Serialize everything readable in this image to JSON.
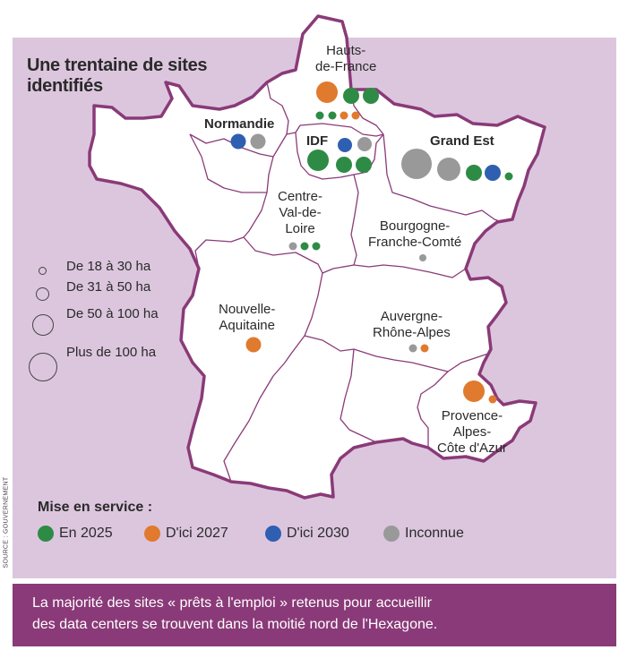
{
  "title_lines": [
    "Une trentaine de sites",
    "identifiés"
  ],
  "regions": {
    "hdf": [
      "Hauts-",
      "de-France"
    ],
    "normandie": "Normandie",
    "idf": "IDF",
    "grand_est": "Grand Est",
    "cvl": [
      "Centre-",
      "Val-de-",
      "Loire"
    ],
    "bfc": [
      "Bourgogne-",
      "Franche-Comté"
    ],
    "na": [
      "Nouvelle-",
      "Aquitaine"
    ],
    "ara": [
      "Auvergne-",
      "Rhône-Alpes"
    ],
    "paca": [
      "Provence-",
      "Alpes-",
      "Côte d'Azur"
    ]
  },
  "size_legend": [
    "De 18 à 30 ha",
    "De 31 à 50 ha",
    "De 50 à 100 ha",
    "Plus de 100 ha"
  ],
  "status_legend": {
    "title": "Mise en service :",
    "items": [
      {
        "label": "En 2025",
        "color": "#2e8b45"
      },
      {
        "label": "D'ici 2027",
        "color": "#e07a2e"
      },
      {
        "label": "D'ici 2030",
        "color": "#2f5fb0"
      },
      {
        "label": "Inconnue",
        "color": "#999999"
      }
    ]
  },
  "sites": {
    "Hauts-de-France": [
      "D'ici 2027:50-100",
      "En 2025:31-50",
      "En 2025:31-50",
      "En 2025:18-30",
      "En 2025:18-30",
      "D'ici 2027:18-30",
      "D'ici 2027:18-30"
    ],
    "Normandie": [
      "D'ici 2030:31-50",
      "Inconnue:31-50"
    ],
    "IDF": [
      "D'ici 2030:31-50",
      "Inconnue:31-50",
      "En 2025:50-100",
      "En 2025:31-50",
      "En 2025:31-50"
    ],
    "Grand Est": [
      "Inconnue:100+",
      "Inconnue:50-100",
      "En 2025:31-50",
      "D'ici 2030:31-50",
      "En 2025:18-30"
    ],
    "Centre-Val-de-Loire": [
      "Inconnue:18-30",
      "En 2025:18-30",
      "En 2025:18-30"
    ],
    "Bourgogne-Franche-Comté": [
      "Inconnue:18-30"
    ],
    "Nouvelle-Aquitaine": [
      "D'ici 2027:31-50"
    ],
    "Auvergne-Rhône-Alpes": [
      "Inconnue:18-30",
      "D'ici 2027:18-30"
    ],
    "Provence-Alpes-Côte d'Azur": [
      "D'ici 2027:50-100",
      "D'ici 2027:18-30"
    ]
  },
  "source": "SOURCE : GOUVERNEMENT",
  "caption_lines": [
    "La majorité des sites « prêts à l'emploi » retenus pour accueillir",
    "des data centers se trouvent dans la moitié nord de l'Hexagone."
  ]
}
